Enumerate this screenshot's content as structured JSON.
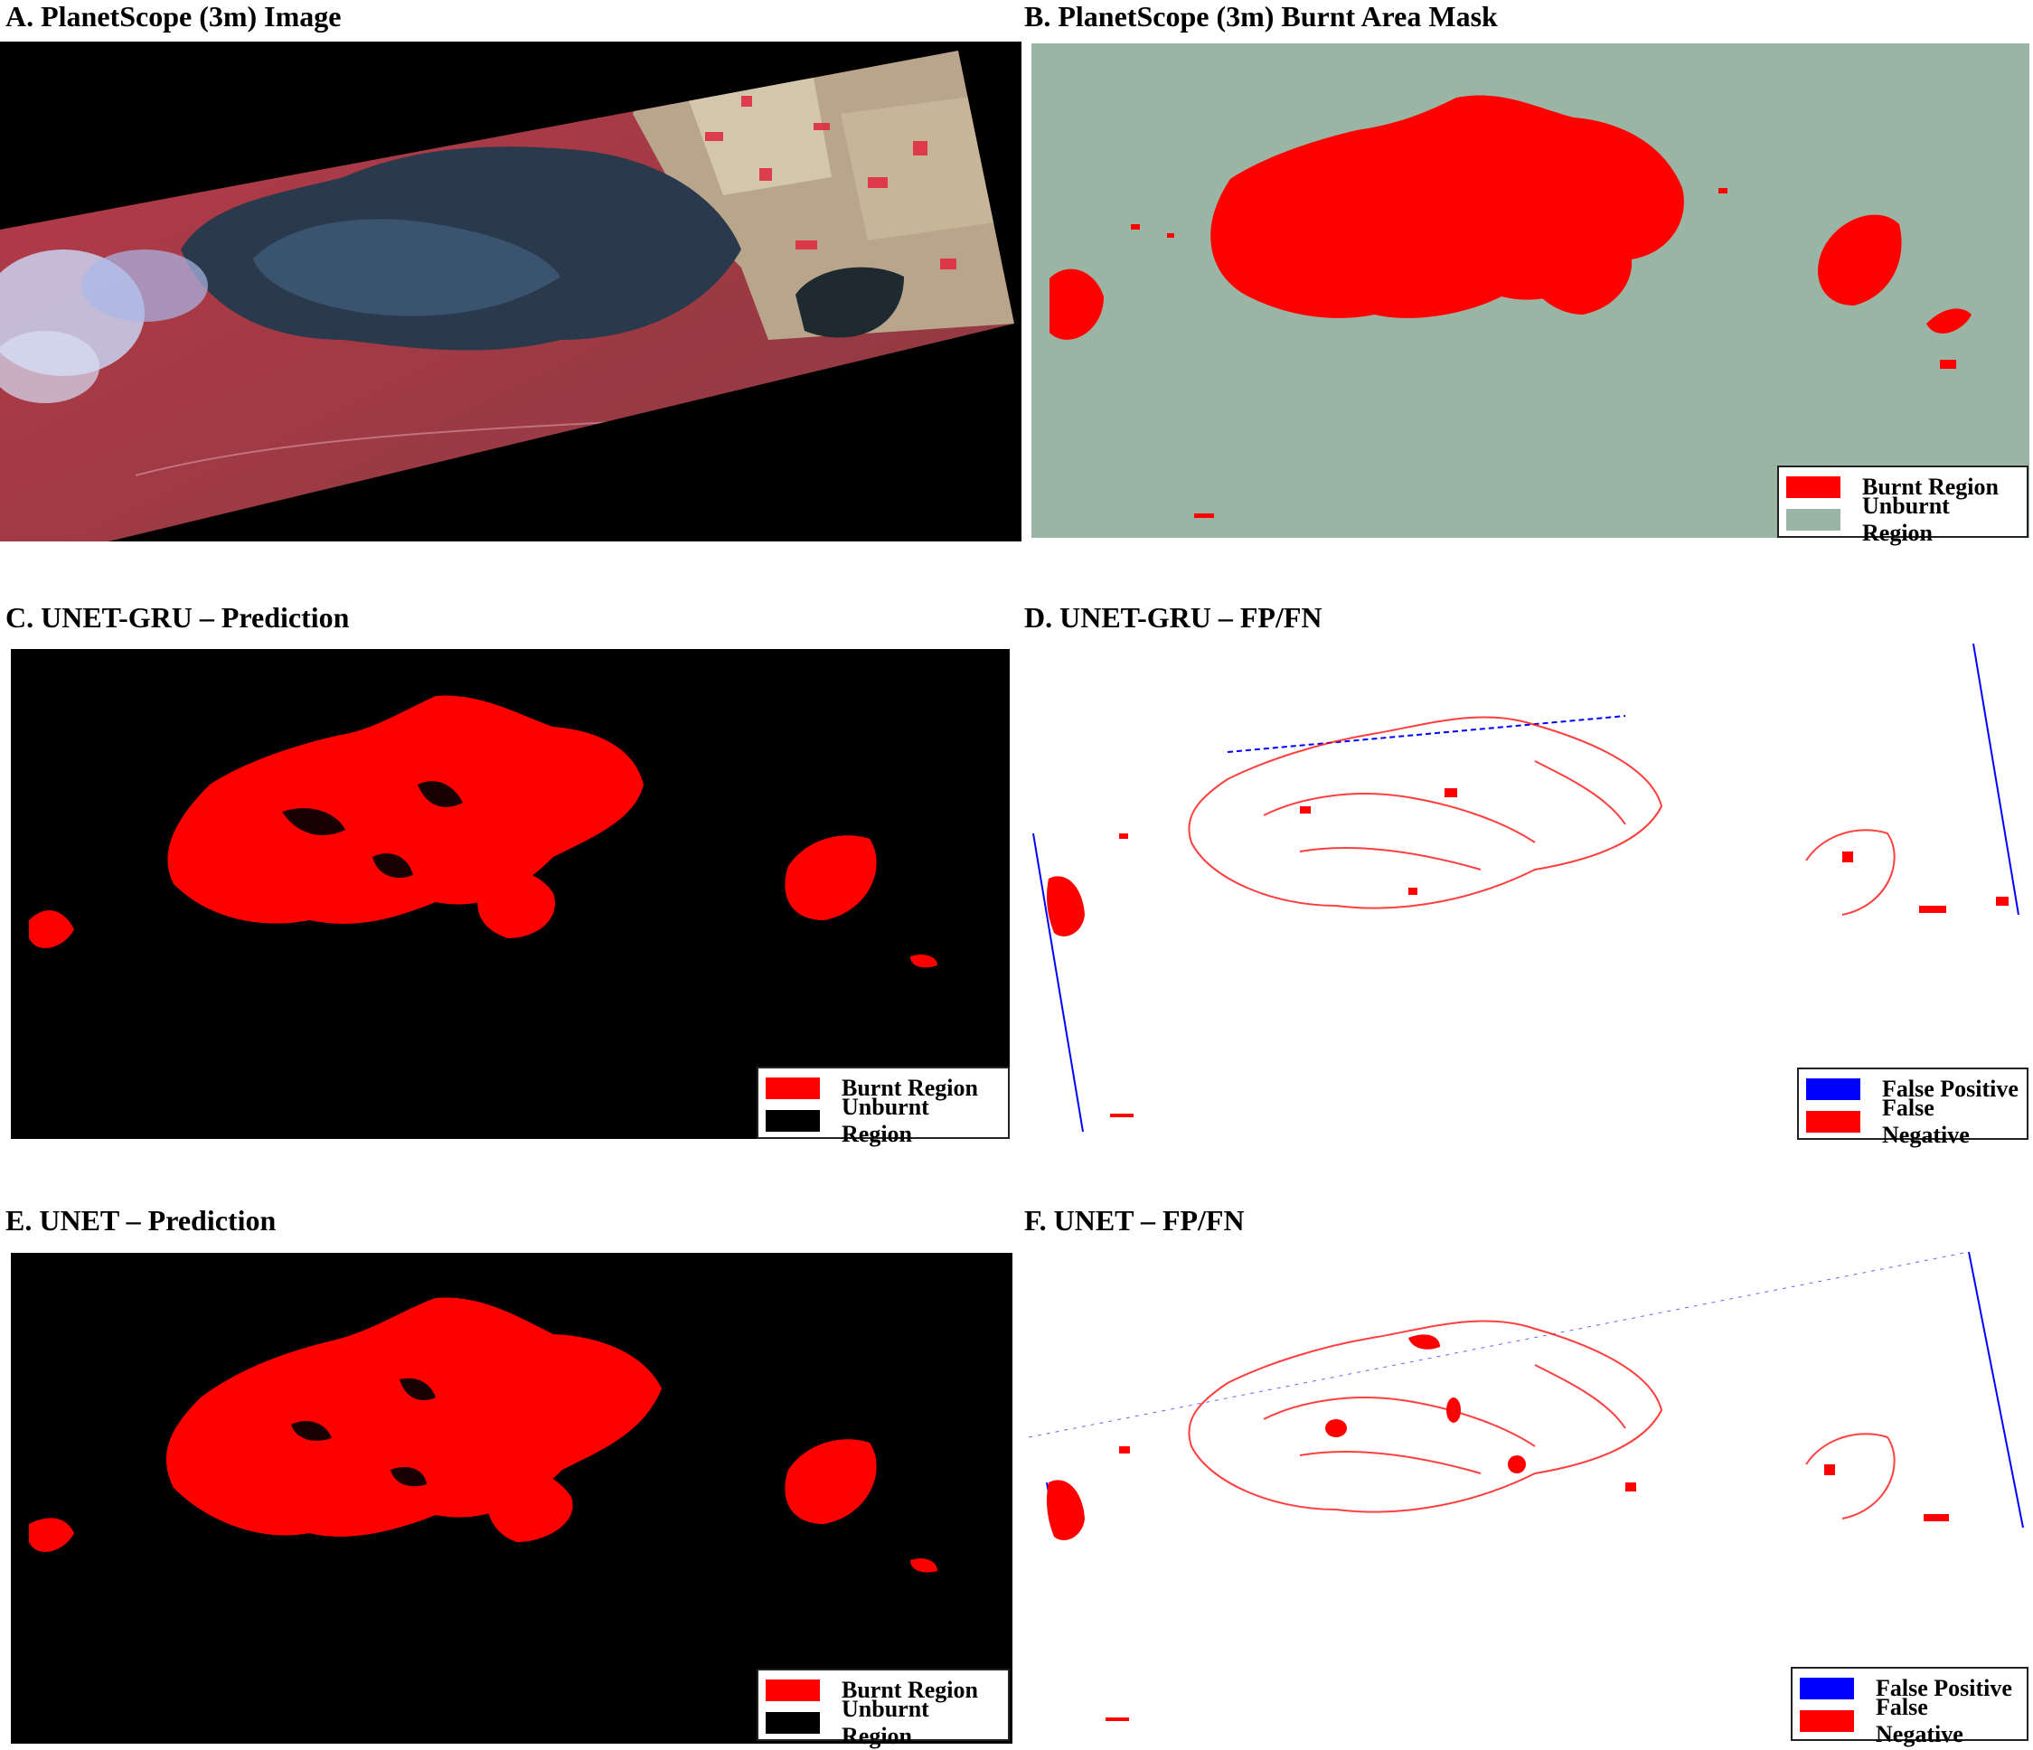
{
  "colors": {
    "burnt": "#ff0000",
    "unburnt_mask": "#9bb5a5",
    "unburnt_pred": "#000000",
    "false_positive": "#0000ff",
    "false_negative": "#ff0000"
  },
  "panels": {
    "a": {
      "title": "A. PlanetScope (3m) Image"
    },
    "b": {
      "title": "B. PlanetScope (3m) Burnt Area Mask",
      "legend": [
        "Burnt Region",
        "Unburnt Region"
      ]
    },
    "c": {
      "title": "C. UNET-GRU – Prediction",
      "legend": [
        "Burnt Region",
        "Unburnt Region"
      ]
    },
    "d": {
      "title": "D. UNET-GRU – FP/FN",
      "legend": [
        "False Positive",
        "False Negative"
      ]
    },
    "e": {
      "title": "E. UNET – Prediction",
      "legend": [
        "Burnt Region",
        "Unburnt Region"
      ]
    },
    "f": {
      "title": "F. UNET – FP/FN",
      "legend": [
        "False Positive",
        "False Negative"
      ]
    }
  }
}
